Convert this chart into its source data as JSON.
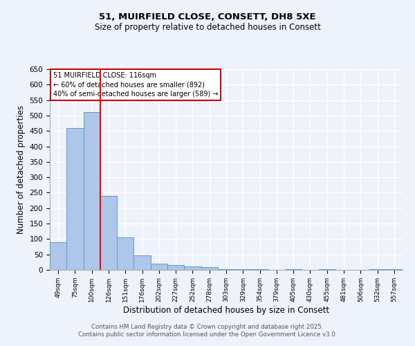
{
  "title1": "51, MUIRFIELD CLOSE, CONSETT, DH8 5XE",
  "title2": "Size of property relative to detached houses in Consett",
  "xlabel": "Distribution of detached houses by size in Consett",
  "ylabel": "Number of detached properties",
  "categories": [
    "49sqm",
    "75sqm",
    "100sqm",
    "126sqm",
    "151sqm",
    "176sqm",
    "202sqm",
    "227sqm",
    "252sqm",
    "278sqm",
    "303sqm",
    "329sqm",
    "354sqm",
    "379sqm",
    "405sqm",
    "430sqm",
    "455sqm",
    "481sqm",
    "506sqm",
    "532sqm",
    "557sqm"
  ],
  "values": [
    90,
    460,
    510,
    240,
    105,
    48,
    20,
    15,
    12,
    8,
    3,
    3,
    3,
    0,
    3,
    0,
    3,
    0,
    0,
    3,
    3
  ],
  "bar_color": "#aec6e8",
  "bar_edge_color": "#5b9bd5",
  "ylim": [
    0,
    650
  ],
  "yticks": [
    0,
    50,
    100,
    150,
    200,
    250,
    300,
    350,
    400,
    450,
    500,
    550,
    600,
    650
  ],
  "red_line_x": 2.5,
  "annotation_title": "51 MUIRFIELD CLOSE: 116sqm",
  "annotation_line1": "← 60% of detached houses are smaller (892)",
  "annotation_line2": "40% of semi-detached houses are larger (589) →",
  "footer1": "Contains HM Land Registry data © Crown copyright and database right 2025.",
  "footer2": "Contains public sector information licensed under the Open Government Licence v3.0.",
  "background_color": "#eef2fb",
  "grid_color": "#d8dff0",
  "annotation_box_color": "#ffffff",
  "annotation_box_edge": "#cc0000",
  "title1_fontsize": 9.5,
  "title2_fontsize": 8.5
}
